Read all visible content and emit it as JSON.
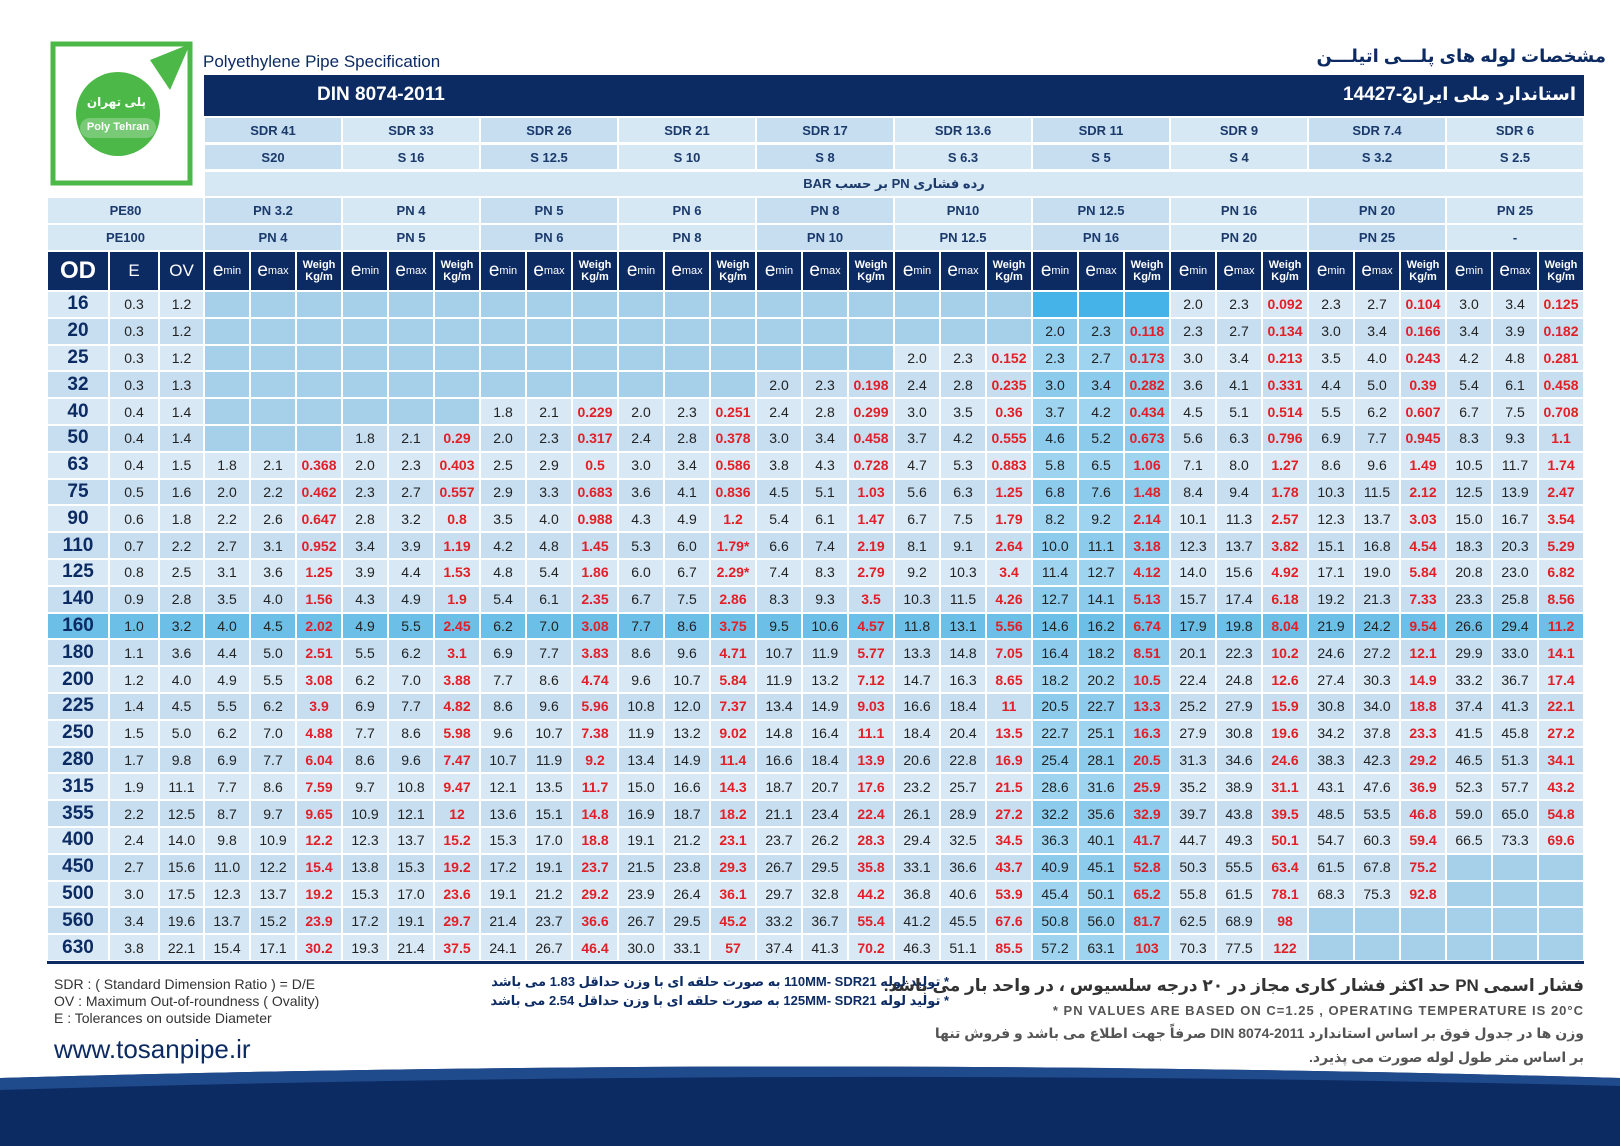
{
  "header": {
    "title_en": "Polyethylene Pipe Specification",
    "title_fa": "مشخصات لوله های پلـــی اتیلـــن",
    "standard": "DIN 8074-2011",
    "national_label": "استاندارد ملی ایران",
    "national_number": "14427-2"
  },
  "logo": {
    "text_fa": "پلی تهران",
    "text_en": "Poly Tehran"
  },
  "table": {
    "sdr": [
      "SDR 41",
      "SDR 33",
      "SDR 26",
      "SDR 21",
      "SDR 17",
      "SDR 13.6",
      "SDR 11",
      "SDR 9",
      "SDR 7.4",
      "SDR 6"
    ],
    "s": [
      "S20",
      "S 16",
      "S 12.5",
      "S 10",
      "S 8",
      "S 6.3",
      "S 5",
      "S 4",
      "S 3.2",
      "S 2.5"
    ],
    "pressure_label": "رده فشاری PN بر حسب BAR",
    "pe80_label": "PE80",
    "pe80": [
      "PN 3.2",
      "PN 4",
      "PN 5",
      "PN 6",
      "PN 8",
      "PN10",
      "PN 12.5",
      "PN 16",
      "PN 20",
      "PN 25"
    ],
    "pe100_label": "PE100",
    "pe100": [
      "PN 4",
      "PN 5",
      "PN 6",
      "PN 8",
      "PN 10",
      "PN 12.5",
      "PN 16",
      "PN 20",
      "PN 25",
      "-"
    ],
    "columns": {
      "od": "OD",
      "e": "E",
      "ov": "OV",
      "e_letter": "e",
      "min": "min",
      "max": "max",
      "weight_1": "Weigh",
      "weight_2": "Kg/m"
    },
    "rows": [
      [
        "16",
        "0.3",
        "1.2",
        null,
        null,
        null,
        null,
        null,
        null,
        null,
        null,
        null,
        null,
        null,
        null,
        null,
        null,
        null,
        null,
        null,
        null,
        null,
        null,
        null,
        "2.0",
        "2.3",
        "0.092",
        "2.3",
        "2.7",
        "0.104",
        "3.0",
        "3.4",
        "0.125"
      ],
      [
        "20",
        "0.3",
        "1.2",
        null,
        null,
        null,
        null,
        null,
        null,
        null,
        null,
        null,
        null,
        null,
        null,
        null,
        null,
        null,
        null,
        null,
        null,
        "2.0",
        "2.3",
        "0.118",
        "2.3",
        "2.7",
        "0.134",
        "3.0",
        "3.4",
        "0.166",
        "3.4",
        "3.9",
        "0.182"
      ],
      [
        "25",
        "0.3",
        "1.2",
        null,
        null,
        null,
        null,
        null,
        null,
        null,
        null,
        null,
        null,
        null,
        null,
        null,
        null,
        null,
        "2.0",
        "2.3",
        "0.152",
        "2.3",
        "2.7",
        "0.173",
        "3.0",
        "3.4",
        "0.213",
        "3.5",
        "4.0",
        "0.243",
        "4.2",
        "4.8",
        "0.281"
      ],
      [
        "32",
        "0.3",
        "1.3",
        null,
        null,
        null,
        null,
        null,
        null,
        null,
        null,
        null,
        null,
        null,
        null,
        "2.0",
        "2.3",
        "0.198",
        "2.4",
        "2.8",
        "0.235",
        "3.0",
        "3.4",
        "0.282",
        "3.6",
        "4.1",
        "0.331",
        "4.4",
        "5.0",
        "0.39",
        "5.4",
        "6.1",
        "0.458"
      ],
      [
        "40",
        "0.4",
        "1.4",
        null,
        null,
        null,
        null,
        null,
        null,
        "1.8",
        "2.1",
        "0.229",
        "2.0",
        "2.3",
        "0.251",
        "2.4",
        "2.8",
        "0.299",
        "3.0",
        "3.5",
        "0.36",
        "3.7",
        "4.2",
        "0.434",
        "4.5",
        "5.1",
        "0.514",
        "5.5",
        "6.2",
        "0.607",
        "6.7",
        "7.5",
        "0.708"
      ],
      [
        "50",
        "0.4",
        "1.4",
        null,
        null,
        null,
        "1.8",
        "2.1",
        "0.29",
        "2.0",
        "2.3",
        "0.317",
        "2.4",
        "2.8",
        "0.378",
        "3.0",
        "3.4",
        "0.458",
        "3.7",
        "4.2",
        "0.555",
        "4.6",
        "5.2",
        "0.673",
        "5.6",
        "6.3",
        "0.796",
        "6.9",
        "7.7",
        "0.945",
        "8.3",
        "9.3",
        "1.1"
      ],
      [
        "63",
        "0.4",
        "1.5",
        "1.8",
        "2.1",
        "0.368",
        "2.0",
        "2.3",
        "0.403",
        "2.5",
        "2.9",
        "0.5",
        "3.0",
        "3.4",
        "0.586",
        "3.8",
        "4.3",
        "0.728",
        "4.7",
        "5.3",
        "0.883",
        "5.8",
        "6.5",
        "1.06",
        "7.1",
        "8.0",
        "1.27",
        "8.6",
        "9.6",
        "1.49",
        "10.5",
        "11.7",
        "1.74"
      ],
      [
        "75",
        "0.5",
        "1.6",
        "2.0",
        "2.2",
        "0.462",
        "2.3",
        "2.7",
        "0.557",
        "2.9",
        "3.3",
        "0.683",
        "3.6",
        "4.1",
        "0.836",
        "4.5",
        "5.1",
        "1.03",
        "5.6",
        "6.3",
        "1.25",
        "6.8",
        "7.6",
        "1.48",
        "8.4",
        "9.4",
        "1.78",
        "10.3",
        "11.5",
        "2.12",
        "12.5",
        "13.9",
        "2.47"
      ],
      [
        "90",
        "0.6",
        "1.8",
        "2.2",
        "2.6",
        "0.647",
        "2.8",
        "3.2",
        "0.8",
        "3.5",
        "4.0",
        "0.988",
        "4.3",
        "4.9",
        "1.2",
        "5.4",
        "6.1",
        "1.47",
        "6.7",
        "7.5",
        "1.79",
        "8.2",
        "9.2",
        "2.14",
        "10.1",
        "11.3",
        "2.57",
        "12.3",
        "13.7",
        "3.03",
        "15.0",
        "16.7",
        "3.54"
      ],
      [
        "110",
        "0.7",
        "2.2",
        "2.7",
        "3.1",
        "0.952",
        "3.4",
        "3.9",
        "1.19",
        "4.2",
        "4.8",
        "1.45",
        "5.3",
        "6.0",
        "1.79*",
        "6.6",
        "7.4",
        "2.19",
        "8.1",
        "9.1",
        "2.64",
        "10.0",
        "11.1",
        "3.18",
        "12.3",
        "13.7",
        "3.82",
        "15.1",
        "16.8",
        "4.54",
        "18.3",
        "20.3",
        "5.29"
      ],
      [
        "125",
        "0.8",
        "2.5",
        "3.1",
        "3.6",
        "1.25",
        "3.9",
        "4.4",
        "1.53",
        "4.8",
        "5.4",
        "1.86",
        "6.0",
        "6.7",
        "2.29*",
        "7.4",
        "8.3",
        "2.79",
        "9.2",
        "10.3",
        "3.4",
        "11.4",
        "12.7",
        "4.12",
        "14.0",
        "15.6",
        "4.92",
        "17.1",
        "19.0",
        "5.84",
        "20.8",
        "23.0",
        "6.82"
      ],
      [
        "140",
        "0.9",
        "2.8",
        "3.5",
        "4.0",
        "1.56",
        "4.3",
        "4.9",
        "1.9",
        "5.4",
        "6.1",
        "2.35",
        "6.7",
        "7.5",
        "2.86",
        "8.3",
        "9.3",
        "3.5",
        "10.3",
        "11.5",
        "4.26",
        "12.7",
        "14.1",
        "5.13",
        "15.7",
        "17.4",
        "6.18",
        "19.2",
        "21.3",
        "7.33",
        "23.3",
        "25.8",
        "8.56"
      ],
      [
        "160",
        "1.0",
        "3.2",
        "4.0",
        "4.5",
        "2.02",
        "4.9",
        "5.5",
        "2.45",
        "6.2",
        "7.0",
        "3.08",
        "7.7",
        "8.6",
        "3.75",
        "9.5",
        "10.6",
        "4.57",
        "11.8",
        "13.1",
        "5.56",
        "14.6",
        "16.2",
        "6.74",
        "17.9",
        "19.8",
        "8.04",
        "21.9",
        "24.2",
        "9.54",
        "26.6",
        "29.4",
        "11.2"
      ],
      [
        "180",
        "1.1",
        "3.6",
        "4.4",
        "5.0",
        "2.51",
        "5.5",
        "6.2",
        "3.1",
        "6.9",
        "7.7",
        "3.83",
        "8.6",
        "9.6",
        "4.71",
        "10.7",
        "11.9",
        "5.77",
        "13.3",
        "14.8",
        "7.05",
        "16.4",
        "18.2",
        "8.51",
        "20.1",
        "22.3",
        "10.2",
        "24.6",
        "27.2",
        "12.1",
        "29.9",
        "33.0",
        "14.1"
      ],
      [
        "200",
        "1.2",
        "4.0",
        "4.9",
        "5.5",
        "3.08",
        "6.2",
        "7.0",
        "3.88",
        "7.7",
        "8.6",
        "4.74",
        "9.6",
        "10.7",
        "5.84",
        "11.9",
        "13.2",
        "7.12",
        "14.7",
        "16.3",
        "8.65",
        "18.2",
        "20.2",
        "10.5",
        "22.4",
        "24.8",
        "12.6",
        "27.4",
        "30.3",
        "14.9",
        "33.2",
        "36.7",
        "17.4"
      ],
      [
        "225",
        "1.4",
        "4.5",
        "5.5",
        "6.2",
        "3.9",
        "6.9",
        "7.7",
        "4.82",
        "8.6",
        "9.6",
        "5.96",
        "10.8",
        "12.0",
        "7.37",
        "13.4",
        "14.9",
        "9.03",
        "16.6",
        "18.4",
        "11",
        "20.5",
        "22.7",
        "13.3",
        "25.2",
        "27.9",
        "15.9",
        "30.8",
        "34.0",
        "18.8",
        "37.4",
        "41.3",
        "22.1"
      ],
      [
        "250",
        "1.5",
        "5.0",
        "6.2",
        "7.0",
        "4.88",
        "7.7",
        "8.6",
        "5.98",
        "9.6",
        "10.7",
        "7.38",
        "11.9",
        "13.2",
        "9.02",
        "14.8",
        "16.4",
        "11.1",
        "18.4",
        "20.4",
        "13.5",
        "22.7",
        "25.1",
        "16.3",
        "27.9",
        "30.8",
        "19.6",
        "34.2",
        "37.8",
        "23.3",
        "41.5",
        "45.8",
        "27.2"
      ],
      [
        "280",
        "1.7",
        "9.8",
        "6.9",
        "7.7",
        "6.04",
        "8.6",
        "9.6",
        "7.47",
        "10.7",
        "11.9",
        "9.2",
        "13.4",
        "14.9",
        "11.4",
        "16.6",
        "18.4",
        "13.9",
        "20.6",
        "22.8",
        "16.9",
        "25.4",
        "28.1",
        "20.5",
        "31.3",
        "34.6",
        "24.6",
        "38.3",
        "42.3",
        "29.2",
        "46.5",
        "51.3",
        "34.1"
      ],
      [
        "315",
        "1.9",
        "11.1",
        "7.7",
        "8.6",
        "7.59",
        "9.7",
        "10.8",
        "9.47",
        "12.1",
        "13.5",
        "11.7",
        "15.0",
        "16.6",
        "14.3",
        "18.7",
        "20.7",
        "17.6",
        "23.2",
        "25.7",
        "21.5",
        "28.6",
        "31.6",
        "25.9",
        "35.2",
        "38.9",
        "31.1",
        "43.1",
        "47.6",
        "36.9",
        "52.3",
        "57.7",
        "43.2"
      ],
      [
        "355",
        "2.2",
        "12.5",
        "8.7",
        "9.7",
        "9.65",
        "10.9",
        "12.1",
        "12",
        "13.6",
        "15.1",
        "14.8",
        "16.9",
        "18.7",
        "18.2",
        "21.1",
        "23.4",
        "22.4",
        "26.1",
        "28.9",
        "27.2",
        "32.2",
        "35.6",
        "32.9",
        "39.7",
        "43.8",
        "39.5",
        "48.5",
        "53.5",
        "46.8",
        "59.0",
        "65.0",
        "54.8"
      ],
      [
        "400",
        "2.4",
        "14.0",
        "9.8",
        "10.9",
        "12.2",
        "12.3",
        "13.7",
        "15.2",
        "15.3",
        "17.0",
        "18.8",
        "19.1",
        "21.2",
        "23.1",
        "23.7",
        "26.2",
        "28.3",
        "29.4",
        "32.5",
        "34.5",
        "36.3",
        "40.1",
        "41.7",
        "44.7",
        "49.3",
        "50.1",
        "54.7",
        "60.3",
        "59.4",
        "66.5",
        "73.3",
        "69.6"
      ],
      [
        "450",
        "2.7",
        "15.6",
        "11.0",
        "12.2",
        "15.4",
        "13.8",
        "15.3",
        "19.2",
        "17.2",
        "19.1",
        "23.7",
        "21.5",
        "23.8",
        "29.3",
        "26.7",
        "29.5",
        "35.8",
        "33.1",
        "36.6",
        "43.7",
        "40.9",
        "45.1",
        "52.8",
        "50.3",
        "55.5",
        "63.4",
        "61.5",
        "67.8",
        "75.2",
        null,
        null,
        null
      ],
      [
        "500",
        "3.0",
        "17.5",
        "12.3",
        "13.7",
        "19.2",
        "15.3",
        "17.0",
        "23.6",
        "19.1",
        "21.2",
        "29.2",
        "23.9",
        "26.4",
        "36.1",
        "29.7",
        "32.8",
        "44.2",
        "36.8",
        "40.6",
        "53.9",
        "45.4",
        "50.1",
        "65.2",
        "55.8",
        "61.5",
        "78.1",
        "68.3",
        "75.3",
        "92.8",
        null,
        null,
        null
      ],
      [
        "560",
        "3.4",
        "19.6",
        "13.7",
        "15.2",
        "23.9",
        "17.2",
        "19.1",
        "29.7",
        "21.4",
        "23.7",
        "36.6",
        "26.7",
        "29.5",
        "45.2",
        "33.2",
        "36.7",
        "55.4",
        "41.2",
        "45.5",
        "67.6",
        "50.8",
        "56.0",
        "81.7",
        "62.5",
        "68.9",
        "98",
        null,
        null,
        null,
        null,
        null,
        null
      ],
      [
        "630",
        "3.8",
        "22.1",
        "15.4",
        "17.1",
        "30.2",
        "19.3",
        "21.4",
        "37.5",
        "24.1",
        "26.7",
        "46.4",
        "30.0",
        "33.1",
        "57",
        "37.4",
        "41.3",
        "70.2",
        "46.3",
        "51.1",
        "85.5",
        "57.2",
        "63.1",
        "103",
        "70.3",
        "77.5",
        "122",
        null,
        null,
        null,
        null,
        null,
        null
      ]
    ]
  },
  "footer": {
    "legend": [
      "SDR : ( Standard Dimension Ratio ) = D/E",
      "OV : Maximum Out-of-roundness ( Ovality)",
      "E : Tolerances on outside Diameter"
    ],
    "website": "www.tosanpipe.ir",
    "notes_fa": [
      "* تولید لوله 110MM- SDR21 به صورت حلقه ای با وزن حداقل 1.83 می باشد",
      "* تولید لوله 125MM- SDR21 به صورت حلقه ای با وزن حداقل 2.54 می باشد"
    ],
    "pn_note_fa": "فشار اسمی PN حد اکثر فشار کاری مجاز در ۲۰ درجه سلسیوس ، در واحد بار می باشد.",
    "pn_note_en": "* PN VALUES ARE BASED ON C=1.25 , OPERATING TEMPERATURE IS 20°C",
    "weight_note_fa": [
      "وزن ها در جدول فوق بر اساس استاندارد DIN 8074-2011 صرفاً جهت اطلاع می باشد و فروش تنها",
      "بر اساس متر طول لوله صورت می پذیرد."
    ]
  }
}
